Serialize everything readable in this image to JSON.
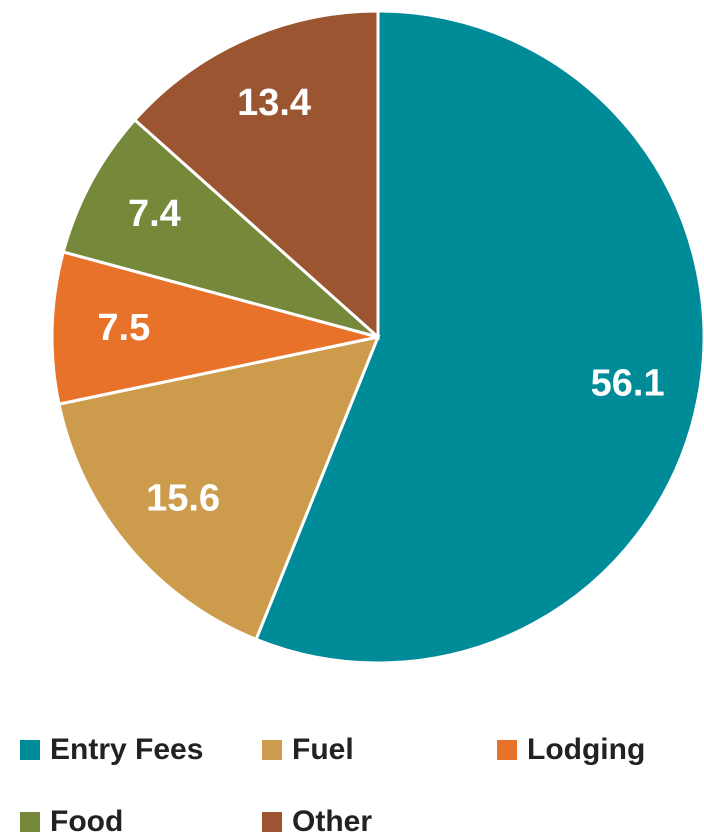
{
  "chart_data": {
    "type": "pie",
    "categories": [
      "Entry Fees",
      "Fuel",
      "Lodging",
      "Food",
      "Other"
    ],
    "values": [
      56.1,
      15.6,
      7.5,
      7.4,
      13.4
    ],
    "colors": [
      "#008b99",
      "#cc9c4c",
      "#e8722a",
      "#76883a",
      "#9b5530"
    ],
    "legend": "bottom"
  }
}
